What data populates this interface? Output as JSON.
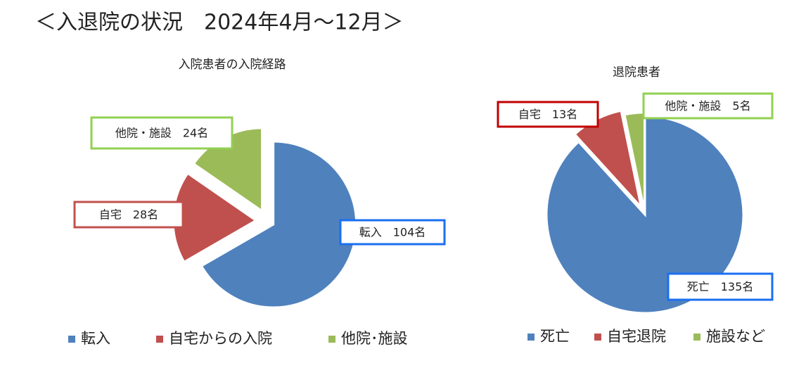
{
  "page_title": "＜入退院の状況　2024年4月～12月＞",
  "chart_data": [
    {
      "type": "pie",
      "title": "入院患者の入院経路",
      "categories": [
        "転入",
        "自宅からの入院",
        "他院･施設"
      ],
      "values": [
        104,
        28,
        24
      ],
      "value_labels": [
        "転入　104名",
        "自宅　28名",
        "他院・施設　24名"
      ],
      "colors": [
        "#4f81bd",
        "#c0504d",
        "#9bbb59"
      ]
    },
    {
      "type": "pie",
      "title": "退院患者",
      "categories": [
        "死亡",
        "自宅退院",
        "施設など"
      ],
      "values": [
        135,
        13,
        5
      ],
      "value_labels": [
        "死亡　135名",
        "自宅　13名",
        "他院・施設　5名"
      ],
      "colors": [
        "#4f81bd",
        "#c0504d",
        "#9bbb59"
      ]
    }
  ]
}
